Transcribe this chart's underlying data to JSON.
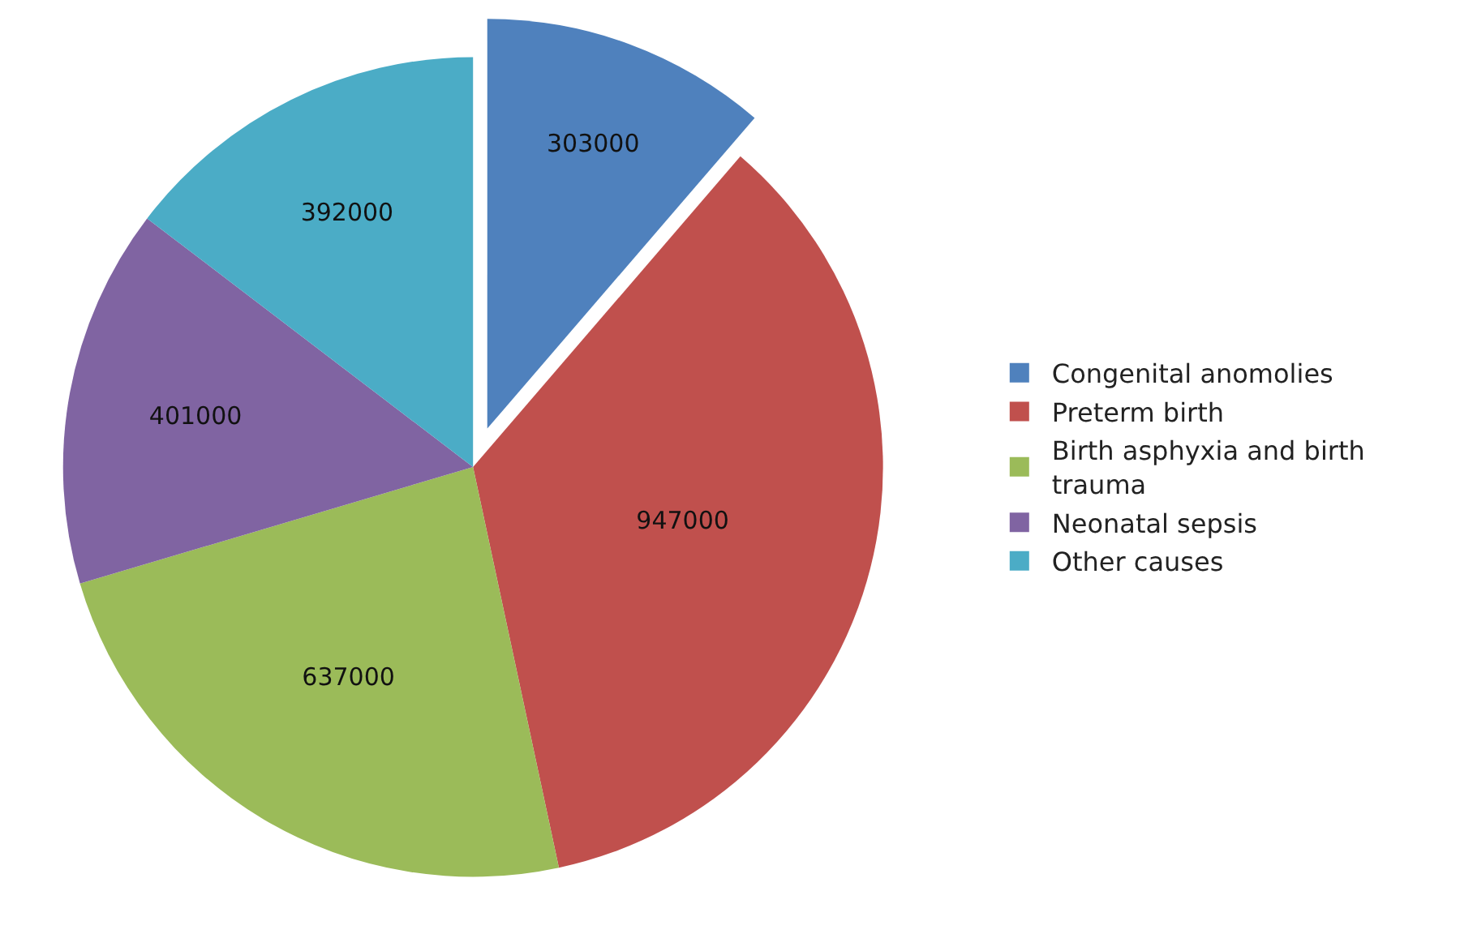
{
  "chart_data": {
    "type": "pie",
    "categories": [
      "Congenital anomolies",
      "Preterm birth",
      "Birth asphyxia and birth trauma",
      "Neonatal sepsis",
      "Other causes"
    ],
    "values": [
      303000,
      947000,
      637000,
      401000,
      392000
    ],
    "colors": [
      "#4f81bd",
      "#c0504d",
      "#9bbb59",
      "#8064a2",
      "#4bacc6"
    ],
    "data_labels": true,
    "legend": "right"
  }
}
